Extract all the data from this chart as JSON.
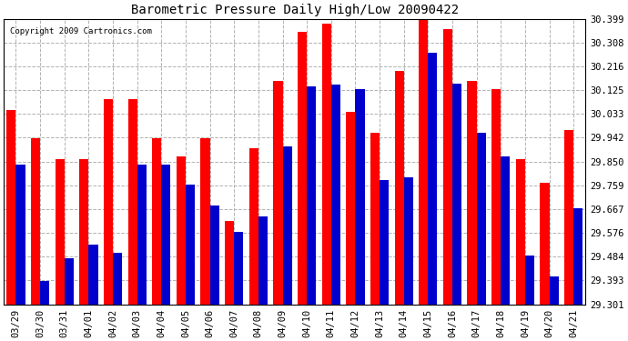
{
  "title": "Barometric Pressure Daily High/Low 20090422",
  "copyright": "Copyright 2009 Cartronics.com",
  "dates": [
    "03/29",
    "03/30",
    "03/31",
    "04/01",
    "04/02",
    "04/03",
    "04/04",
    "04/05",
    "04/06",
    "04/07",
    "04/08",
    "04/09",
    "04/10",
    "04/11",
    "04/12",
    "04/13",
    "04/14",
    "04/15",
    "04/16",
    "04/17",
    "04/18",
    "04/19",
    "04/20",
    "04/21"
  ],
  "highs": [
    30.05,
    29.94,
    29.86,
    29.86,
    30.09,
    30.09,
    29.94,
    29.87,
    29.94,
    29.62,
    29.9,
    30.16,
    30.35,
    30.38,
    30.04,
    29.96,
    30.2,
    30.399,
    30.36,
    30.16,
    30.13,
    29.86,
    29.77,
    29.97
  ],
  "lows": [
    29.84,
    29.39,
    29.48,
    29.53,
    29.5,
    29.84,
    29.84,
    29.76,
    29.68,
    29.58,
    29.64,
    29.91,
    30.14,
    30.145,
    30.13,
    29.78,
    29.79,
    30.27,
    30.15,
    29.96,
    29.87,
    29.49,
    29.41,
    29.67
  ],
  "high_color": "#ff0000",
  "low_color": "#0000cc",
  "bg_color": "#ffffff",
  "grid_color": "#aaaaaa",
  "yticks": [
    29.301,
    29.393,
    29.484,
    29.576,
    29.667,
    29.759,
    29.85,
    29.942,
    30.033,
    30.125,
    30.216,
    30.308,
    30.399
  ],
  "ymin": 29.301,
  "ymax": 30.399,
  "bar_width": 0.38
}
